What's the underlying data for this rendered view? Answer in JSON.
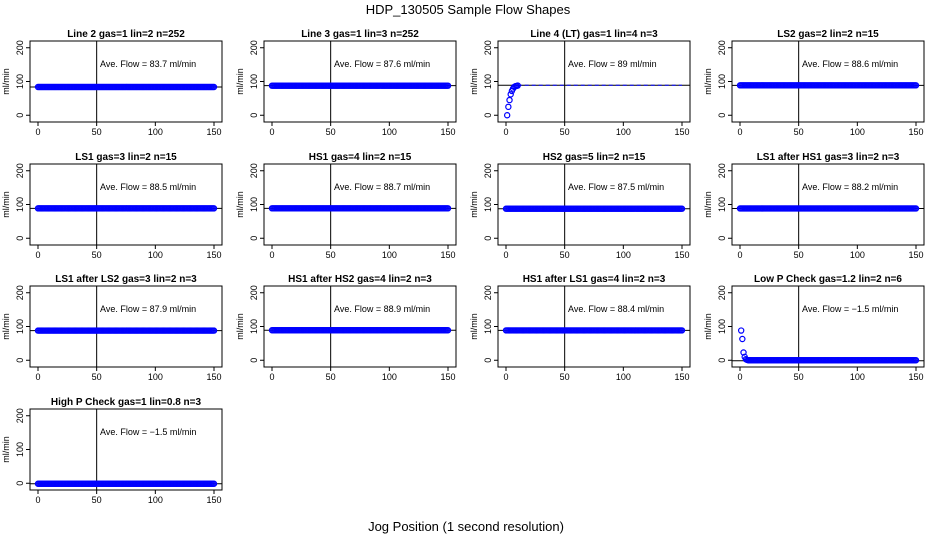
{
  "figure": {
    "title": "HDP_130505  Sample Flow Shapes",
    "xlabel": "Jog Position (1 second resolution)"
  },
  "chart_data": [
    {
      "type": "scatter",
      "title": "Line 2 gas=1 lin=2 n=252",
      "annotation": "Ave. Flow =  83.7  ml/min",
      "ylabel": "ml/min",
      "xlim": [
        0,
        150
      ],
      "ylim": [
        -20,
        220
      ],
      "xticks": [
        0,
        50,
        100,
        150
      ],
      "yticks": [
        0,
        100,
        200
      ],
      "vline": 50,
      "hline": 83.7,
      "shape": "flat",
      "value": 83.7
    },
    {
      "type": "scatter",
      "title": "Line 3 gas=1 lin=3 n=252",
      "annotation": "Ave. Flow =  87.6  ml/min",
      "ylabel": "ml/min",
      "xlim": [
        0,
        150
      ],
      "ylim": [
        -20,
        220
      ],
      "xticks": [
        0,
        50,
        100,
        150
      ],
      "yticks": [
        0,
        100,
        200
      ],
      "vline": 50,
      "hline": 87.6,
      "shape": "flat",
      "value": 87.6
    },
    {
      "type": "scatter",
      "title": "Line 4 (LT) gas=1 lin=4 n=3",
      "annotation": "Ave. Flow =  89  ml/min",
      "ylabel": "ml/min",
      "xlim": [
        0,
        150
      ],
      "ylim": [
        -20,
        220
      ],
      "xticks": [
        0,
        50,
        100,
        150
      ],
      "yticks": [
        0,
        100,
        200
      ],
      "vline": 50,
      "hline": 89,
      "shape": "rise",
      "value": 89,
      "x": [
        1,
        2,
        3,
        4,
        5,
        6,
        7,
        8,
        9,
        10
      ],
      "y": [
        0,
        25,
        45,
        62,
        72,
        79,
        84,
        86,
        87,
        88
      ]
    },
    {
      "type": "scatter",
      "title": "LS2 gas=2 lin=2 n=15",
      "annotation": "Ave. Flow =  88.6  ml/min",
      "ylabel": "ml/min",
      "xlim": [
        0,
        150
      ],
      "ylim": [
        -20,
        220
      ],
      "xticks": [
        0,
        50,
        100,
        150
      ],
      "yticks": [
        0,
        100,
        200
      ],
      "vline": 50,
      "hline": 88.6,
      "shape": "flat",
      "value": 88.6
    },
    {
      "type": "scatter",
      "title": "LS1 gas=3 lin=2 n=15",
      "annotation": "Ave. Flow =  88.5  ml/min",
      "ylabel": "ml/min",
      "xlim": [
        0,
        150
      ],
      "ylim": [
        -20,
        220
      ],
      "xticks": [
        0,
        50,
        100,
        150
      ],
      "yticks": [
        0,
        100,
        200
      ],
      "vline": 50,
      "hline": 88.5,
      "shape": "flat",
      "value": 88.5
    },
    {
      "type": "scatter",
      "title": "HS1 gas=4 lin=2 n=15",
      "annotation": "Ave. Flow =  88.7  ml/min",
      "ylabel": "ml/min",
      "xlim": [
        0,
        150
      ],
      "ylim": [
        -20,
        220
      ],
      "xticks": [
        0,
        50,
        100,
        150
      ],
      "yticks": [
        0,
        100,
        200
      ],
      "vline": 50,
      "hline": 88.7,
      "shape": "flat",
      "value": 88.7
    },
    {
      "type": "scatter",
      "title": "HS2 gas=5 lin=2 n=15",
      "annotation": "Ave. Flow =  87.5  ml/min",
      "ylabel": "ml/min",
      "xlim": [
        0,
        150
      ],
      "ylim": [
        -20,
        220
      ],
      "xticks": [
        0,
        50,
        100,
        150
      ],
      "yticks": [
        0,
        100,
        200
      ],
      "vline": 50,
      "hline": 87.5,
      "shape": "flat",
      "value": 87.5
    },
    {
      "type": "scatter",
      "title": "LS1 after HS1 gas=3 lin=2 n=3",
      "annotation": "Ave. Flow =  88.2  ml/min",
      "ylabel": "ml/min",
      "xlim": [
        0,
        150
      ],
      "ylim": [
        -20,
        220
      ],
      "xticks": [
        0,
        50,
        100,
        150
      ],
      "yticks": [
        0,
        100,
        200
      ],
      "vline": 50,
      "hline": 88.2,
      "shape": "flat",
      "value": 88.2
    },
    {
      "type": "scatter",
      "title": "LS1 after LS2 gas=3 lin=2 n=3",
      "annotation": "Ave. Flow =  87.9  ml/min",
      "ylabel": "ml/min",
      "xlim": [
        0,
        150
      ],
      "ylim": [
        -20,
        220
      ],
      "xticks": [
        0,
        50,
        100,
        150
      ],
      "yticks": [
        0,
        100,
        200
      ],
      "vline": 50,
      "hline": 87.9,
      "shape": "flat",
      "value": 87.9
    },
    {
      "type": "scatter",
      "title": "HS1 after HS2 gas=4 lin=2 n=3",
      "annotation": "Ave. Flow =  88.9  ml/min",
      "ylabel": "ml/min",
      "xlim": [
        0,
        150
      ],
      "ylim": [
        -20,
        220
      ],
      "xticks": [
        0,
        50,
        100,
        150
      ],
      "yticks": [
        0,
        100,
        200
      ],
      "vline": 50,
      "hline": 88.9,
      "shape": "flat",
      "value": 88.9
    },
    {
      "type": "scatter",
      "title": "HS1 after LS1 gas=4 lin=2 n=3",
      "annotation": "Ave. Flow =  88.4  ml/min",
      "ylabel": "ml/min",
      "xlim": [
        0,
        150
      ],
      "ylim": [
        -20,
        220
      ],
      "xticks": [
        0,
        50,
        100,
        150
      ],
      "yticks": [
        0,
        100,
        200
      ],
      "vline": 50,
      "hline": 88.4,
      "shape": "flat",
      "value": 88.4
    },
    {
      "type": "scatter",
      "title": "Low P Check gas=1.2 lin=2 n=6",
      "annotation": "Ave. Flow =  −1.5  ml/min",
      "ylabel": "ml/min",
      "xlim": [
        0,
        150
      ],
      "ylim": [
        -20,
        220
      ],
      "xticks": [
        0,
        50,
        100,
        150
      ],
      "yticks": [
        0,
        100,
        200
      ],
      "vline": 50,
      "hline": -1.5,
      "shape": "drop",
      "value": -1.5,
      "x": [
        1,
        2,
        3,
        4,
        5,
        6,
        7,
        8
      ],
      "y": [
        88,
        63,
        23,
        10,
        3,
        1,
        0,
        0
      ]
    },
    {
      "type": "scatter",
      "title": "High P Check gas=1 lin=0.8 n=3",
      "annotation": "Ave. Flow =  −1.5  ml/min",
      "ylabel": "ml/min",
      "xlim": [
        0,
        150
      ],
      "ylim": [
        -20,
        220
      ],
      "xticks": [
        0,
        50,
        100,
        150
      ],
      "yticks": [
        0,
        100,
        200
      ],
      "vline": 50,
      "hline": -1.5,
      "shape": "flat",
      "value": -1.5
    }
  ],
  "colors": {
    "points": "#0000ff",
    "axis": "#000000",
    "background": "#ffffff"
  }
}
